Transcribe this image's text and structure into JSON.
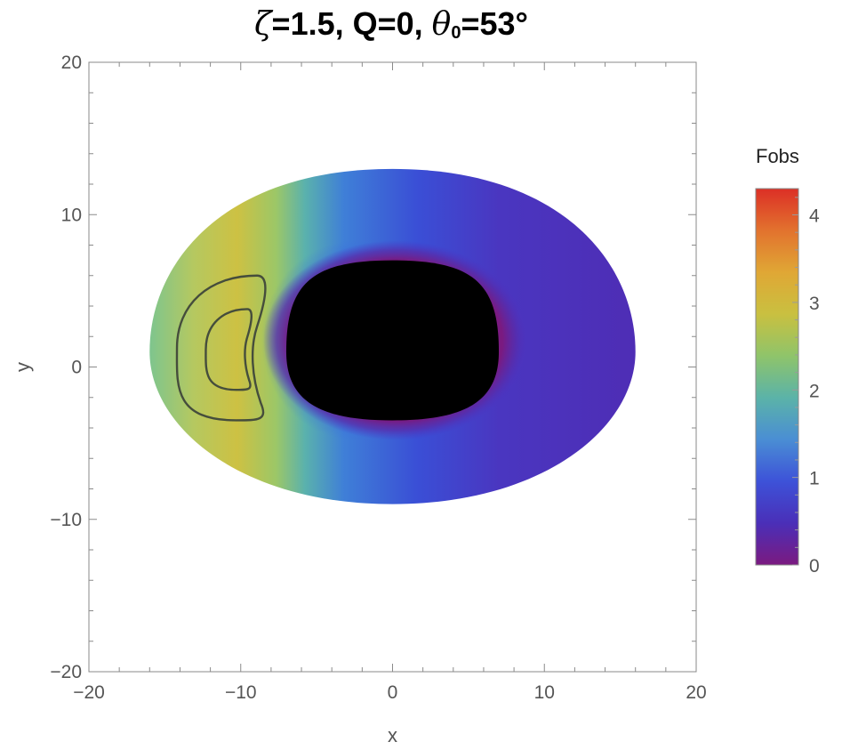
{
  "chart_data": {
    "type": "heatmap",
    "title": {
      "zeta_symbol": "ζ",
      "zeta_text": "=1.5, Q=0, ",
      "theta_symbol": "θ",
      "theta_sub": "0",
      "theta_text": "=53°"
    },
    "xlabel": "x",
    "ylabel": "y",
    "xlim": [
      -20,
      20
    ],
    "ylim": [
      -20,
      20
    ],
    "x_ticks": [
      -20,
      -10,
      0,
      10,
      20
    ],
    "x_tick_labels": [
      "−20",
      "−10",
      "0",
      "10",
      "20"
    ],
    "y_ticks": [
      -20,
      -10,
      0,
      10,
      20
    ],
    "y_tick_labels": [
      "−20",
      "−10",
      "0",
      "10",
      "20"
    ],
    "minor_tick_step": 2,
    "grid": false,
    "disk": {
      "outer_x_range": [
        -16,
        16
      ],
      "outer_y_range": [
        -9,
        13
      ],
      "inner_shadow_x_range": [
        -7,
        7
      ],
      "inner_shadow_y_range": [
        -3.5,
        7
      ],
      "center_y": 1
    },
    "contours": [
      {
        "level": "outer",
        "x_range": [
          -14.2,
          -8.2
        ],
        "y_range": [
          -3.5,
          6
        ]
      },
      {
        "level": "inner",
        "x_range": [
          -12.3,
          -9.2
        ],
        "y_range": [
          -1.5,
          3.8
        ]
      }
    ],
    "colorbar": {
      "title": "Fobs",
      "min": 0,
      "max": 4.3,
      "ticks": [
        0,
        1,
        2,
        3,
        4
      ],
      "tick_labels": [
        "0",
        "1",
        "2",
        "3",
        "4"
      ],
      "position": "right",
      "colors": [
        "#7b1a80",
        "#4a2fb8",
        "#3d52d8",
        "#4a8ed4",
        "#5bb3a8",
        "#8fc46a",
        "#c9c040",
        "#e0a735",
        "#e2722e",
        "#dc2f26"
      ]
    },
    "shadow_color": "#000000"
  }
}
